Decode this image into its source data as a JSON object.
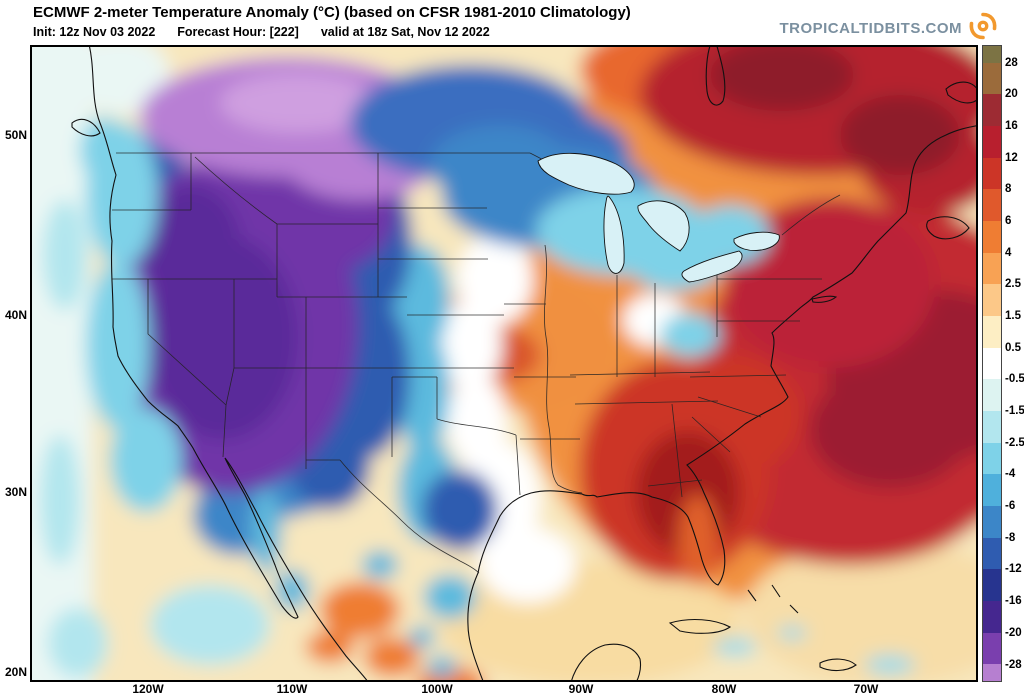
{
  "header": {
    "title": "ECMWF 2-meter Temperature Anomaly (°C) (based on CFSR 1981-2010 Climatology)",
    "init": "Init: 12z Nov 03 2022",
    "forecast_hour": "Forecast Hour: [222]",
    "valid": "valid at 18z Sat, Nov 12 2022",
    "brand": "TROPICALTIDBITS.COM"
  },
  "map": {
    "lat_ticks": [
      "50N",
      "40N",
      "30N",
      "20N"
    ],
    "lon_ticks": [
      "120W",
      "110W",
      "100W",
      "90W",
      "80W",
      "70W"
    ]
  },
  "colorbar": {
    "units": "°C",
    "tick_labels": [
      "28",
      "20",
      "16",
      "12",
      "8",
      "6",
      "4",
      "2.5",
      "1.5",
      "0.5",
      "-0.5",
      "-1.5",
      "-2.5",
      "-4",
      "-6",
      "-8",
      "-12",
      "-16",
      "-20",
      "-28"
    ],
    "colors": [
      "#7c7344",
      "#9b6b3b",
      "#9d2b33",
      "#b81f2e",
      "#cc3527",
      "#e0592c",
      "#ef7d33",
      "#f8a254",
      "#fcc888",
      "#fdeec4",
      "#ffffff",
      "#ddf3f1",
      "#b2e6ee",
      "#7ed2e8",
      "#4fb0dc",
      "#3c86c8",
      "#2f5cb0",
      "#27348f",
      "#45278f",
      "#7a3fae",
      "#b67fd0"
    ]
  },
  "chart_data": {
    "type": "heatmap",
    "title": "ECMWF 2-meter Temperature Anomaly (°C)",
    "model": "ECMWF",
    "climatology": "CFSR 1981-2010",
    "init_time": "12z Nov 03 2022",
    "forecast_hour": 222,
    "valid_time": "18z Sat, Nov 12 2022",
    "units": "°C",
    "x_ticks": [
      "120W",
      "110W",
      "100W",
      "90W",
      "80W",
      "70W"
    ],
    "y_ticks": [
      "50N",
      "40N",
      "30N",
      "20N"
    ],
    "scale_breakpoints_c": [
      -28,
      -20,
      -16,
      -12,
      -8,
      -6,
      -4,
      -2.5,
      -1.5,
      -0.5,
      0.5,
      1.5,
      2.5,
      4,
      6,
      8,
      12,
      16,
      20,
      28
    ],
    "legend_position": "right",
    "regions": [
      {
        "name": "base-neutral",
        "anomaly_c": 1,
        "color": "#f8e7bd"
      },
      {
        "name": "pacific-ocean-strip",
        "anomaly_c": -0.5,
        "color": "#eaf7f4"
      },
      {
        "name": "east-warm-zone",
        "anomaly_c": 5,
        "color": "#f1913f"
      },
      {
        "name": "hudson-bay-warm",
        "anomaly_c": 7,
        "color": "#e8682f"
      },
      {
        "name": "central-plains-warm",
        "anomaly_c": 4,
        "color": "#f09040"
      },
      {
        "name": "central-plains-warm-core",
        "anomaly_c": 7,
        "color": "#d9542c"
      },
      {
        "name": "gulf-of-mexico-mild",
        "anomaly_c": 1.5,
        "color": "#f8dca2"
      },
      {
        "name": "southwest-atlantic-mild",
        "anomaly_c": 1,
        "color": "#f7dda8"
      },
      {
        "name": "atlantic-warm",
        "anomaly_c": 10,
        "color": "#c22b30"
      },
      {
        "name": "atlantic-warm-core",
        "anomaly_c": 14,
        "color": "#9c1f33"
      },
      {
        "name": "northeast-us-warm",
        "anomaly_c": 12,
        "color": "#bb2438"
      },
      {
        "name": "eastern-canada-warm",
        "anomaly_c": 12,
        "color": "#b5242e"
      },
      {
        "name": "eastern-canada-warm-core",
        "anomaly_c": 17,
        "color": "#8e1b2c"
      },
      {
        "name": "southeast-us-warm",
        "anomaly_c": 9,
        "color": "#cc3527"
      },
      {
        "name": "southeast-us-warm-core",
        "anomaly_c": 13,
        "color": "#a31f1f"
      },
      {
        "name": "florida-warm",
        "anomaly_c": 6,
        "color": "#e0602c"
      },
      {
        "name": "mexico-warm-patches",
        "anomaly_c": 4,
        "color": "#ef7d33"
      },
      {
        "name": "neutral-transition-band",
        "anomaly_c": 0,
        "color": "#ffffff"
      },
      {
        "name": "plains-cold-band",
        "anomaly_c": -4,
        "color": "#5bbade"
      },
      {
        "name": "southern-texas-cold-spot",
        "anomaly_c": -9,
        "color": "#2f5cb0"
      },
      {
        "name": "southwest-cold-blue",
        "anomaly_c": -7,
        "color": "#3c86c8"
      },
      {
        "name": "rockies-cold-navy",
        "anomaly_c": -10,
        "color": "#2f5cb0"
      },
      {
        "name": "great-basin-cold-purple",
        "anomaly_c": -22,
        "color": "#6f35a8"
      },
      {
        "name": "great-basin-cold-core",
        "anomaly_c": -26,
        "color": "#5a2a9a"
      },
      {
        "name": "northern-rockies-cold-lavender",
        "anomaly_c": -29,
        "color": "#b87fd4"
      },
      {
        "name": "northern-rockies-cold-lavender-core",
        "anomaly_c": -30,
        "color": "#cf9fe0"
      },
      {
        "name": "southern-canada-cold",
        "anomaly_c": -7,
        "color": "#3a6ec0"
      },
      {
        "name": "upper-midwest-cold",
        "anomaly_c": -6,
        "color": "#3c86c8"
      },
      {
        "name": "great-lakes-cold",
        "anomaly_c": -3,
        "color": "#7ed2e8"
      },
      {
        "name": "pacific-coast-cold",
        "anomaly_c": -3,
        "color": "#7ed2e8"
      },
      {
        "name": "pacific-ocean-cool-patches",
        "anomaly_c": -2,
        "color": "#b2e6ee"
      },
      {
        "name": "mexico-cold-patches",
        "anomaly_c": -4,
        "color": "#5fb8dc"
      },
      {
        "name": "caribbean-cool-specks",
        "anomaly_c": -1.5,
        "color": "#9fdcea"
      }
    ]
  }
}
